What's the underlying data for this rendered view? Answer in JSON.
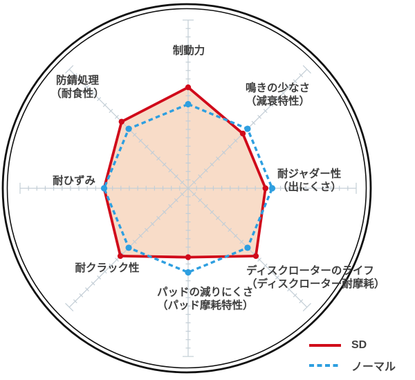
{
  "chart_data": {
    "type": "radar",
    "title": "",
    "description": "Brake disc rotor performance comparison radar chart drawn inside a double-line circle resembling a brake rotor",
    "axes": [
      {
        "label": "制動力",
        "label2": ""
      },
      {
        "label": "鳴きの少なさ",
        "label2": "（減衰特性）"
      },
      {
        "label": "耐ジャダー性",
        "label2": "（出にくさ）"
      },
      {
        "label": "ディスクローターのライフ",
        "label2": "（ディスクローター耐摩耗）"
      },
      {
        "label": "パッドの減りにくさ",
        "label2": "（パッド摩耗特性）"
      },
      {
        "label": "耐クラック性",
        "label2": ""
      },
      {
        "label": "耐ひずみ",
        "label2": ""
      },
      {
        "label": "防錆処理",
        "label2": "（耐食性）"
      }
    ],
    "scale": {
      "min": 0,
      "max": 10,
      "tick_interval": 0.5,
      "axis_count": 8
    },
    "series": [
      {
        "name": "SD",
        "style": "solid",
        "color": "#d00a1a",
        "fill": "#f8dcc8",
        "values": [
          6.0,
          4.6,
          4.6,
          5.7,
          4.1,
          5.7,
          5.0,
          5.6
        ]
      },
      {
        "name": "ノーマル",
        "style": "dashed",
        "color": "#2e9fe0",
        "fill": "none",
        "values": [
          5.0,
          5.0,
          5.0,
          5.0,
          5.0,
          5.0,
          5.0,
          5.0
        ]
      }
    ],
    "legend_position": "bottom-right",
    "grid": {
      "axis_color": "#c3ced6",
      "outer_circle_color": "#101010"
    }
  },
  "legend": {
    "items": [
      {
        "label": "SD"
      },
      {
        "label": "ノーマル"
      }
    ]
  }
}
